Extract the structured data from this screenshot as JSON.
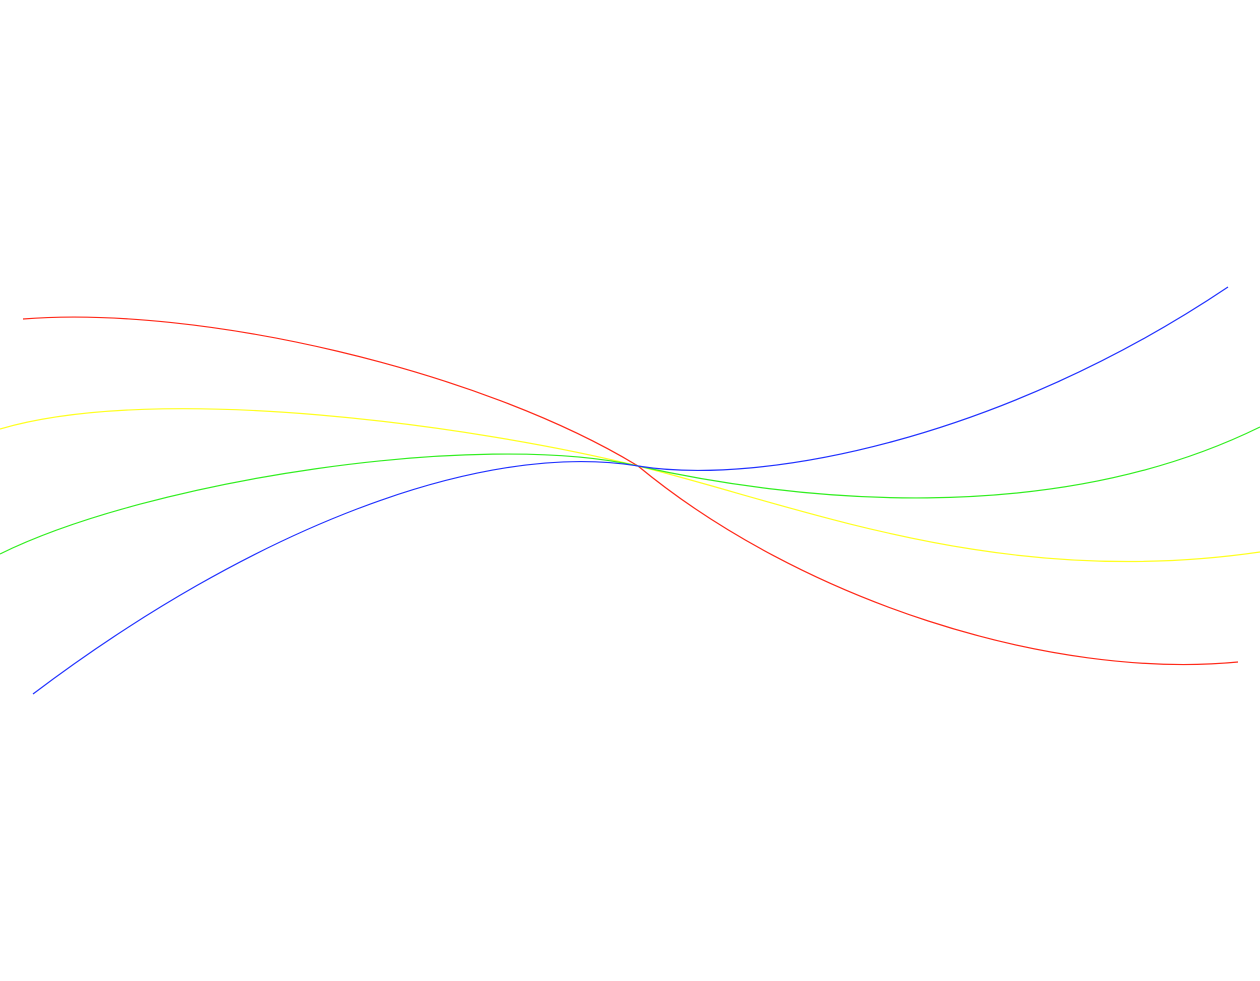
{
  "background": "#ffffff",
  "curves": [
    {
      "id": "red",
      "color": "#ff2a1a"
    },
    {
      "id": "yellow",
      "color": "#ffff22"
    },
    {
      "id": "green",
      "color": "#33ee22"
    },
    {
      "id": "blue",
      "color": "#2233ff"
    }
  ]
}
